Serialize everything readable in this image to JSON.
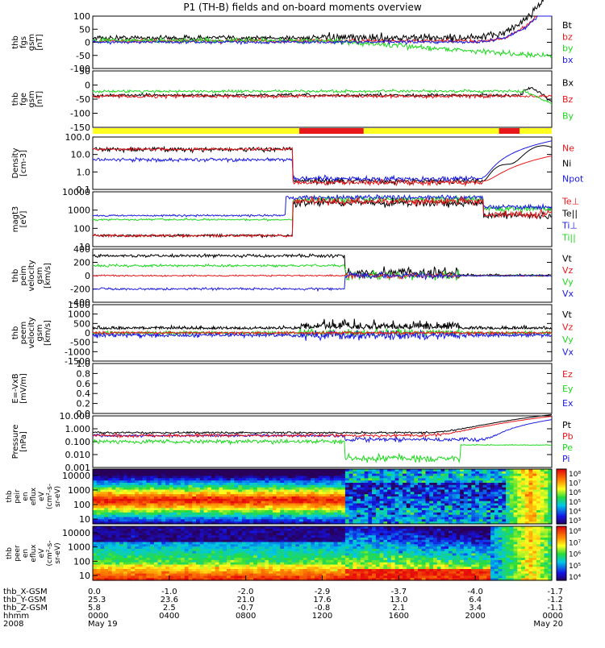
{
  "title": "P1 (TH-B) fields and on-board moments overview",
  "colors": {
    "black": "#000000",
    "red": "#e8171a",
    "green": "#20d820",
    "blue": "#1a1ae0",
    "yellow": "#ffff20"
  },
  "chart_data": [
    {
      "type": "line",
      "ylabel": [
        "thb",
        "fgs",
        "gsm",
        "[nT]"
      ],
      "ylim": [
        -100,
        100
      ],
      "yticks": [
        "100",
        "50",
        "0",
        "-50",
        "-100"
      ],
      "legend": [
        {
          "label": "Bt",
          "color": "#000000"
        },
        {
          "label": "bz",
          "color": "#e8171a"
        },
        {
          "label": "by",
          "color": "#20d820"
        },
        {
          "label": "bx",
          "color": "#1a1ae0"
        }
      ]
    },
    {
      "type": "line",
      "ylabel": [
        "thb",
        "fge",
        "gsm",
        "[nT]"
      ],
      "ylim": [
        -150,
        100
      ],
      "yticks": [
        "50",
        "0",
        "-50",
        "-100",
        "-150"
      ],
      "legend": [
        {
          "label": "Bx",
          "color": "#000000"
        },
        {
          "label": "Bz",
          "color": "#e8171a"
        },
        {
          "label": "By",
          "color": "#20d820"
        }
      ]
    },
    {
      "type": "line",
      "ylabel": [
        "Density",
        "[cm-3]"
      ],
      "ylim": [
        0.1,
        100
      ],
      "yscale": "log",
      "yticks": [
        "100.0",
        "10.0",
        "1.0",
        "0.1"
      ],
      "legend": [
        {
          "label": "Ne",
          "color": "#e8171a"
        },
        {
          "label": "Ni",
          "color": "#000000"
        },
        {
          "label": "Npot",
          "color": "#1a1ae0"
        }
      ]
    },
    {
      "type": "line",
      "ylabel": [
        "magt3",
        "[eV]"
      ],
      "ylim": [
        10,
        10000
      ],
      "yscale": "log",
      "yticks": [
        "10000",
        "1000",
        "100",
        "10"
      ],
      "legend": [
        {
          "label": "Te⊥",
          "color": "#e8171a"
        },
        {
          "label": "Te||",
          "color": "#000000"
        },
        {
          "label": "Ti⊥",
          "color": "#1a1ae0"
        },
        {
          "label": "Ti||",
          "color": "#20d820"
        }
      ]
    },
    {
      "type": "line",
      "ylabel": [
        "thb",
        "peim",
        "velocity",
        "gsm",
        "[km/s]"
      ],
      "ylim": [
        -400,
        400
      ],
      "yticks": [
        "400",
        "200",
        "0",
        "-200",
        "-400"
      ],
      "legend": [
        {
          "label": "Vt",
          "color": "#000000"
        },
        {
          "label": "Vz",
          "color": "#e8171a"
        },
        {
          "label": "Vy",
          "color": "#20d820"
        },
        {
          "label": "Vx",
          "color": "#1a1ae0"
        }
      ]
    },
    {
      "type": "line",
      "ylabel": [
        "thb",
        "peem",
        "velocity",
        "gsm",
        "[km/s]"
      ],
      "ylim": [
        -1500,
        1500
      ],
      "yticks": [
        "1500",
        "1000",
        "500",
        "0",
        "-500",
        "-1000",
        "-1500"
      ],
      "legend": [
        {
          "label": "Vt",
          "color": "#000000"
        },
        {
          "label": "Vz",
          "color": "#e8171a"
        },
        {
          "label": "Vy",
          "color": "#20d820"
        },
        {
          "label": "Vx",
          "color": "#1a1ae0"
        }
      ]
    },
    {
      "type": "line",
      "ylabel": [
        "E=-VxB",
        "[mV/m]"
      ],
      "ylim": [
        0,
        1
      ],
      "yticks": [
        "1.0",
        "0.8",
        "0.6",
        "0.4",
        "0.2",
        "0.0"
      ],
      "legend": [
        {
          "label": "Ez",
          "color": "#e8171a"
        },
        {
          "label": "Ey",
          "color": "#20d820"
        },
        {
          "label": "Ex",
          "color": "#1a1ae0"
        }
      ]
    },
    {
      "type": "line",
      "ylabel": [
        "Pressure",
        "[nPa]"
      ],
      "ylim": [
        0.001,
        10
      ],
      "yscale": "log",
      "yticks": [
        "10.000",
        "1.000",
        "0.100",
        "0.010",
        "0.001"
      ],
      "legend": [
        {
          "label": "Pt",
          "color": "#000000"
        },
        {
          "label": "Pb",
          "color": "#e8171a"
        },
        {
          "label": "Pe",
          "color": "#20d820"
        },
        {
          "label": "Pi",
          "color": "#1a1ae0"
        }
      ]
    },
    {
      "type": "heatmap",
      "ylabel": [
        "thb",
        "peir",
        "en",
        "eflux",
        "eV",
        "(cm²-s-",
        "sr-eV)"
      ],
      "yscale": "log",
      "ylim": [
        10,
        20000
      ],
      "yticks": [
        "10000",
        "1000",
        "100",
        "10"
      ],
      "colorbar": [
        "10⁸",
        "10⁷",
        "10⁶",
        "10⁵",
        "10⁴",
        "10³"
      ]
    },
    {
      "type": "heatmap",
      "ylabel": [
        "thb",
        "peer",
        "en",
        "eflux",
        "eV",
        "(cm²-s-",
        "sr-eV)"
      ],
      "yscale": "log",
      "ylim": [
        10,
        20000
      ],
      "yticks": [
        "10000",
        "1000",
        "100",
        "10"
      ],
      "colorbar": [
        "10⁸",
        "10⁷",
        "10⁶",
        "10⁵",
        "10⁴"
      ]
    }
  ],
  "xaxis": {
    "rows": [
      {
        "label": "thb_X-GSM",
        "values": [
          "0.0",
          "-1.0",
          "-2.0",
          "-2.9",
          "-3.7",
          "-4.0",
          "-1.7"
        ]
      },
      {
        "label": "thb_Y-GSM",
        "values": [
          "25.3",
          "23.6",
          "21.0",
          "17.6",
          "13.0",
          "6.4",
          "-1.2"
        ]
      },
      {
        "label": "thb_Z-GSM",
        "values": [
          "5.8",
          "2.5",
          "-0.7",
          "-0.8",
          "2.1",
          "3.4",
          "-1.1"
        ]
      },
      {
        "label": "hhmm",
        "values": [
          "0000",
          "0400",
          "0800",
          "1200",
          "1600",
          "2000",
          "0000"
        ]
      },
      {
        "label": "2008",
        "values": [
          "May 19",
          "",
          "",
          "",
          "",
          "",
          "May 20"
        ]
      }
    ]
  }
}
